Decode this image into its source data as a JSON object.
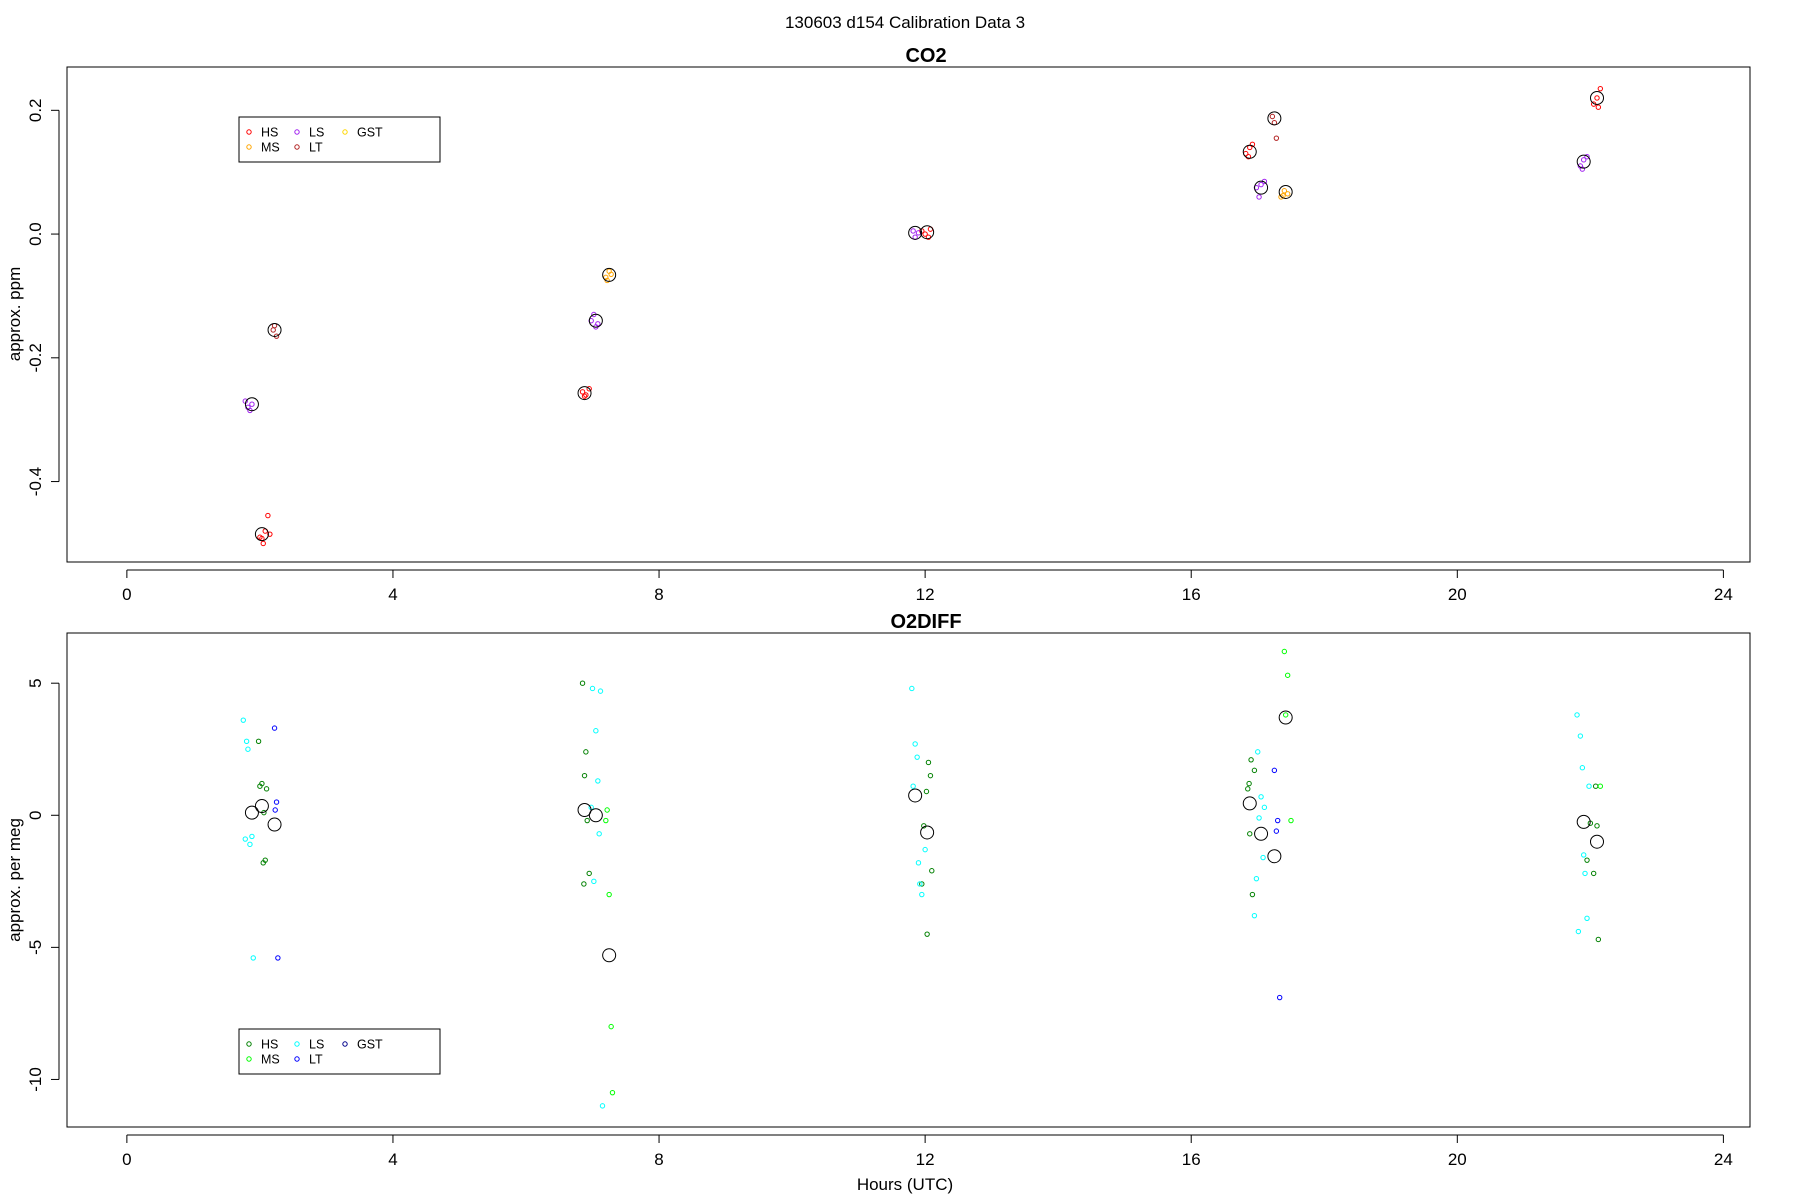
{
  "figure": {
    "title": "130603   d154   Calibration Data 3",
    "xlabel": "Hours (UTC)"
  },
  "chart_data": [
    {
      "type": "scatter",
      "title": "CO2",
      "xlabel": "",
      "ylabel": "approx. ppm",
      "xlim": [
        -0.9,
        24.4
      ],
      "ylim": [
        -0.53,
        0.27
      ],
      "xticks": [
        0,
        4,
        8,
        12,
        16,
        20,
        24
      ],
      "yticks": [
        -0.4,
        -0.2,
        0.0,
        0.2
      ],
      "ytick_labels": [
        "-0.4",
        "-0.2",
        "0.0",
        "0.2"
      ],
      "legend": {
        "position": "top-left",
        "columns": 3
      },
      "series": [
        {
          "name": "HS",
          "color": "#ff0000",
          "x": [
            2.0,
            2.05,
            2.08,
            2.12,
            2.15,
            2.03,
            6.85,
            6.9,
            6.95,
            6.88,
            11.95,
            12.0,
            12.05,
            12.08,
            16.82,
            16.88,
            16.92,
            16.86,
            22.05,
            22.1,
            22.15,
            22.12
          ],
          "y": [
            -0.49,
            -0.5,
            -0.48,
            -0.455,
            -0.485,
            -0.492,
            -0.255,
            -0.26,
            -0.25,
            -0.262,
            0.005,
            0.0,
            -0.005,
            0.008,
            0.13,
            0.14,
            0.145,
            0.125,
            0.21,
            0.22,
            0.235,
            0.205
          ]
        },
        {
          "name": "MS",
          "color": "#ffa500",
          "x": [
            7.2,
            7.25,
            7.28,
            7.22,
            17.35,
            17.4,
            17.45,
            17.38
          ],
          "y": [
            -0.07,
            -0.06,
            -0.065,
            -0.075,
            0.06,
            0.07,
            0.065,
            0.062
          ]
        },
        {
          "name": "LS",
          "color": "#a020f0",
          "x": [
            1.78,
            1.82,
            1.88,
            1.85,
            6.98,
            7.02,
            7.08,
            7.05,
            11.82,
            11.85,
            11.9,
            16.98,
            17.05,
            17.02,
            17.1,
            21.85,
            21.9,
            21.95,
            21.88
          ],
          "y": [
            -0.27,
            -0.28,
            -0.275,
            -0.285,
            -0.14,
            -0.13,
            -0.145,
            -0.15,
            0.005,
            -0.005,
            0.002,
            0.075,
            0.08,
            0.06,
            0.085,
            0.11,
            0.12,
            0.125,
            0.105
          ]
        },
        {
          "name": "LT",
          "color": "#b22222",
          "x": [
            2.2,
            2.25,
            2.22,
            17.22,
            17.28,
            17.25
          ],
          "y": [
            -0.155,
            -0.165,
            -0.148,
            0.19,
            0.155,
            0.18
          ]
        },
        {
          "name": "GST",
          "color": "#ffd700",
          "x": [],
          "y": []
        }
      ],
      "means": {
        "color": "#000000",
        "x": [
          1.88,
          2.03,
          2.22,
          6.88,
          7.05,
          7.25,
          11.85,
          12.03,
          16.88,
          17.05,
          17.25,
          17.42,
          21.9,
          22.1
        ],
        "y": [
          -0.275,
          -0.485,
          -0.155,
          -0.257,
          -0.14,
          -0.066,
          0.002,
          0.003,
          0.133,
          0.075,
          0.187,
          0.068,
          0.117,
          0.22
        ]
      }
    },
    {
      "type": "scatter",
      "title": "O2DIFF",
      "xlabel": "Hours (UTC)",
      "ylabel": "approx. per meg",
      "xlim": [
        -0.9,
        24.4
      ],
      "ylim": [
        -11.8,
        6.9
      ],
      "xticks": [
        0,
        4,
        8,
        12,
        16,
        20,
        24
      ],
      "yticks": [
        -10,
        -5,
        0,
        5
      ],
      "ytick_labels": [
        "-10",
        "-5",
        "0",
        "5"
      ],
      "legend": {
        "position": "bottom-left",
        "columns": 3
      },
      "series": [
        {
          "name": "HS",
          "color": "#008000",
          "x": [
            2.0,
            2.03,
            2.06,
            1.98,
            2.05,
            2.08,
            2.1,
            6.85,
            6.9,
            6.88,
            6.92,
            6.95,
            6.87,
            11.95,
            12.02,
            12.05,
            12.08,
            12.1,
            11.98,
            12.03,
            16.85,
            16.9,
            16.95,
            16.88,
            16.92,
            16.87,
            21.95,
            22.0,
            22.05,
            22.08,
            22.1,
            22.12
          ],
          "y": [
            1.1,
            1.2,
            0.1,
            2.8,
            -1.8,
            -1.7,
            1.0,
            5.0,
            2.4,
            1.5,
            -0.2,
            -2.2,
            -2.6,
            -2.6,
            0.9,
            2.0,
            1.5,
            -2.1,
            -0.4,
            -4.5,
            1.0,
            2.1,
            1.7,
            -0.7,
            -3.0,
            1.2,
            -1.7,
            -0.3,
            -2.2,
            1.1,
            -0.4,
            -4.7
          ]
        },
        {
          "name": "MS",
          "color": "#00ff00",
          "x": [
            7.22,
            7.25,
            7.28,
            7.3,
            7.2,
            17.4,
            17.45,
            17.5,
            17.42,
            22.15
          ],
          "y": [
            0.2,
            -3.0,
            -8.0,
            -10.5,
            -0.2,
            6.2,
            5.3,
            -0.2,
            3.8,
            1.1
          ]
        },
        {
          "name": "LS",
          "color": "#00ffff",
          "x": [
            1.75,
            1.8,
            1.82,
            1.85,
            1.88,
            1.78,
            1.9,
            7.0,
            7.05,
            7.08,
            7.1,
            7.02,
            6.98,
            7.12,
            7.15,
            11.8,
            11.85,
            11.88,
            11.9,
            11.92,
            11.95,
            11.82,
            12.0,
            16.95,
            17.0,
            17.05,
            17.08,
            17.1,
            16.98,
            17.02,
            21.8,
            21.85,
            21.88,
            21.9,
            21.92,
            21.95,
            21.82,
            21.98
          ],
          "y": [
            3.6,
            2.8,
            2.5,
            -1.1,
            -0.8,
            -0.9,
            -5.4,
            4.8,
            3.2,
            1.3,
            -0.7,
            -2.5,
            0.3,
            4.7,
            -11.0,
            4.8,
            2.7,
            2.2,
            -1.8,
            -2.6,
            -3.0,
            1.1,
            -1.3,
            -3.8,
            2.4,
            0.7,
            -1.6,
            0.3,
            -2.4,
            -0.1,
            3.8,
            3.0,
            1.8,
            -1.5,
            -2.2,
            -3.9,
            -4.4,
            1.1
          ]
        },
        {
          "name": "LT",
          "color": "#0000ff",
          "x": [
            2.22,
            2.25,
            2.23,
            2.27,
            17.25,
            17.3,
            17.28,
            17.33
          ],
          "y": [
            3.3,
            0.5,
            0.2,
            -5.4,
            1.7,
            -0.2,
            -0.6,
            -6.9
          ]
        },
        {
          "name": "GST",
          "color": "#00008b",
          "x": [],
          "y": []
        }
      ],
      "means": {
        "color": "#000000",
        "x": [
          1.88,
          2.03,
          2.22,
          6.88,
          7.05,
          7.25,
          11.85,
          12.03,
          16.88,
          17.05,
          17.25,
          17.42,
          21.9,
          22.1
        ],
        "y": [
          0.1,
          0.35,
          -0.35,
          0.2,
          0.0,
          -5.3,
          0.75,
          -0.65,
          0.45,
          -0.7,
          -1.55,
          3.7,
          -0.25,
          -1.0
        ]
      }
    }
  ]
}
